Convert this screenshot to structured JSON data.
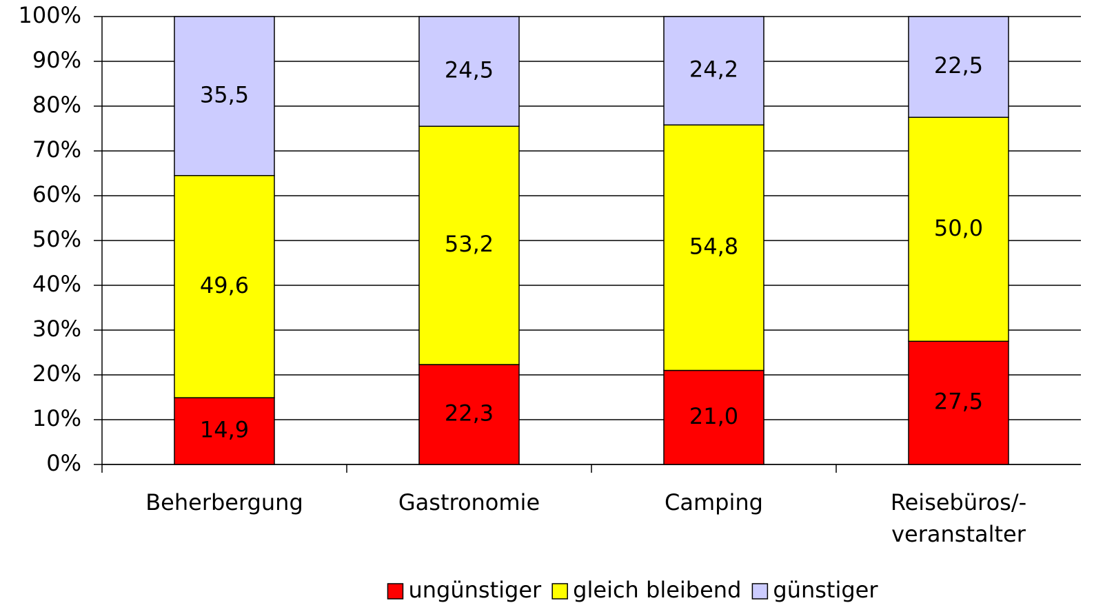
{
  "chart_data": {
    "type": "stacked_bar_100",
    "categories": [
      "Beherbergung",
      "Gastronomie",
      "Camping",
      "Reisebüros/-veranstalter"
    ],
    "series": [
      {
        "name": "ungünstiger",
        "color": "#ff0000",
        "values": [
          14.9,
          22.3,
          21.0,
          27.5
        ],
        "value_labels": [
          "14,9",
          "22,3",
          "21,0",
          "27,5"
        ]
      },
      {
        "name": "gleich bleibend",
        "color": "#ffff00",
        "values": [
          49.6,
          53.2,
          54.8,
          50.0
        ],
        "value_labels": [
          "49,6",
          "53,2",
          "54,8",
          "50,0"
        ]
      },
      {
        "name": "günstiger",
        "color": "#ccccff",
        "values": [
          35.5,
          24.5,
          24.2,
          22.5
        ],
        "value_labels": [
          "35,5",
          "24,5",
          "24,2",
          "22,5"
        ]
      }
    ],
    "ylim": [
      0,
      100
    ],
    "yticks": [
      {
        "value": 0,
        "label": "0%"
      },
      {
        "value": 10,
        "label": "10%"
      },
      {
        "value": 20,
        "label": "20%"
      },
      {
        "value": 30,
        "label": "30%"
      },
      {
        "value": 40,
        "label": "40%"
      },
      {
        "value": 50,
        "label": "50%"
      },
      {
        "value": 60,
        "label": "60%"
      },
      {
        "value": 70,
        "label": "70%"
      },
      {
        "value": 80,
        "label": "80%"
      },
      {
        "value": 90,
        "label": "90%"
      },
      {
        "value": 100,
        "label": "100%"
      }
    ],
    "grid": true,
    "legend": "bottom"
  }
}
